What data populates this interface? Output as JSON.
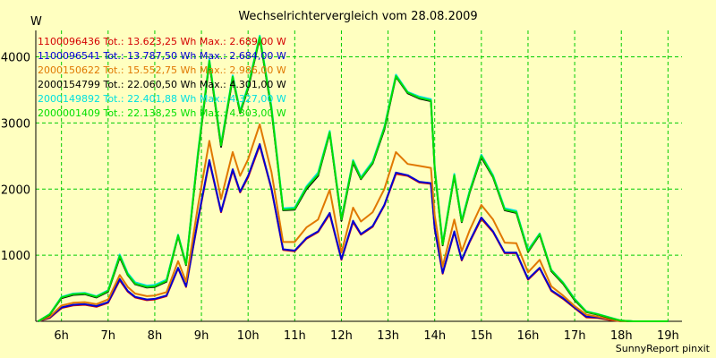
{
  "chart_data": {
    "type": "line",
    "title": "Wechselrichtervergleich vom 28.08.2009",
    "ylabel": "W",
    "ylim": [
      0,
      4400
    ],
    "xlim": [
      5.45,
      19.3
    ],
    "y_ticks": [
      1000,
      2000,
      3000,
      4000
    ],
    "x_ticks": [
      "6h",
      "7h",
      "8h",
      "9h",
      "10h",
      "11h",
      "12h",
      "13h",
      "14h",
      "15h",
      "16h",
      "17h",
      "18h",
      "19h"
    ],
    "grid": true,
    "legend_position": "top-left",
    "footer": "SunnyReport pinxit",
    "x": [
      5.5,
      5.75,
      6.0,
      6.25,
      6.5,
      6.75,
      7.0,
      7.25,
      7.42,
      7.58,
      7.83,
      8.0,
      8.25,
      8.5,
      8.67,
      8.92,
      9.17,
      9.42,
      9.67,
      9.83,
      10.0,
      10.25,
      10.5,
      10.75,
      11.0,
      11.25,
      11.5,
      11.75,
      12.0,
      12.25,
      12.42,
      12.67,
      12.92,
      13.17,
      13.42,
      13.67,
      13.92,
      14.0,
      14.17,
      14.42,
      14.58,
      14.75,
      15.0,
      15.25,
      15.5,
      15.75,
      16.0,
      16.25,
      16.5,
      16.75,
      17.0,
      17.25,
      17.5,
      17.75,
      18.0,
      18.25,
      18.5,
      18.75,
      19.0
    ],
    "series": [
      {
        "name": "1100096436",
        "legend": "1100096436 Tot.: 13.623,25 Wh Max.: 2.689,00 W",
        "color": "#d40000",
        "values": [
          0,
          50,
          200,
          240,
          250,
          220,
          280,
          620,
          450,
          360,
          320,
          330,
          380,
          800,
          520,
          1500,
          2420,
          1650,
          2280,
          1950,
          2180,
          2660,
          2000,
          1080,
          1060,
          1250,
          1350,
          1620,
          930,
          1500,
          1310,
          1430,
          1750,
          2230,
          2200,
          2100,
          2080,
          1400,
          720,
          1350,
          920,
          1200,
          1550,
          1350,
          1030,
          1030,
          630,
          800,
          460,
          340,
          200,
          60,
          50,
          20,
          0,
          0,
          0,
          0,
          0
        ]
      },
      {
        "name": "1100096541",
        "legend": "1100096541 Tot.: 13.787,50 Wh Max.: 2.684,00 W",
        "color": "#0000d4",
        "values": [
          0,
          60,
          210,
          250,
          260,
          230,
          290,
          640,
          460,
          370,
          330,
          340,
          390,
          810,
          530,
          1520,
          2440,
          1660,
          2300,
          1960,
          2200,
          2680,
          2010,
          1090,
          1070,
          1260,
          1360,
          1640,
          940,
          1520,
          1320,
          1440,
          1760,
          2250,
          2210,
          2110,
          2090,
          1410,
          730,
          1360,
          930,
          1210,
          1570,
          1360,
          1040,
          1040,
          640,
          810,
          470,
          350,
          210,
          70,
          60,
          30,
          0,
          0,
          0,
          0,
          0
        ]
      },
      {
        "name": "2000150622",
        "legend": "2000150622 Tot.: 15.552,75 Wh Max.: 2.986,00 W",
        "color": "#e07800",
        "values": [
          0,
          70,
          240,
          280,
          290,
          260,
          330,
          700,
          520,
          420,
          380,
          390,
          440,
          910,
          600,
          1720,
          2730,
          1850,
          2560,
          2200,
          2450,
          2980,
          2260,
          1200,
          1200,
          1420,
          1540,
          1990,
          1040,
          1720,
          1510,
          1650,
          2000,
          2560,
          2380,
          2350,
          2320,
          1600,
          830,
          1540,
          1060,
          1380,
          1760,
          1540,
          1190,
          1180,
          740,
          930,
          530,
          390,
          230,
          100,
          70,
          30,
          0,
          0,
          0,
          0,
          0
        ]
      },
      {
        "name": "2000154799",
        "legend": "2000154799 Tot.: 22.060,50 Wh Max.: 4.301,00 W",
        "color": "#000000",
        "values": [
          0,
          100,
          350,
          400,
          410,
          360,
          450,
          970,
          700,
          560,
          510,
          520,
          600,
          1290,
          850,
          2480,
          3920,
          2640,
          3680,
          3150,
          3520,
          4290,
          3200,
          1680,
          1690,
          2000,
          2200,
          2850,
          1520,
          2400,
          2150,
          2390,
          2900,
          3700,
          3450,
          3370,
          3330,
          2300,
          1150,
          2200,
          1500,
          1950,
          2480,
          2180,
          1680,
          1640,
          1050,
          1310,
          760,
          570,
          320,
          140,
          100,
          50,
          10,
          0,
          0,
          0,
          0
        ]
      },
      {
        "name": "2000149892",
        "legend": "2000149892 Tot.: 22.401,88 Wh Max.: 4.327,00 W",
        "color": "#00e0e0",
        "values": [
          0,
          110,
          370,
          420,
          430,
          380,
          470,
          1010,
          730,
          590,
          540,
          550,
          630,
          1310,
          870,
          2520,
          3960,
          2680,
          3720,
          3180,
          3560,
          4320,
          3250,
          1710,
          1720,
          2040,
          2250,
          2880,
          1560,
          2440,
          2180,
          2420,
          2940,
          3730,
          3470,
          3400,
          3360,
          2340,
          1180,
          2230,
          1530,
          1980,
          2520,
          2210,
          1710,
          1670,
          1080,
          1330,
          780,
          590,
          340,
          150,
          110,
          60,
          10,
          0,
          0,
          0,
          0
        ]
      },
      {
        "name": "2000001409",
        "legend": "2000001409 Tot.: 22.138,25 Wh Max.: 4.303,00 W",
        "color": "#00e000",
        "values": [
          0,
          105,
          360,
          410,
          420,
          370,
          460,
          990,
          710,
          570,
          520,
          530,
          610,
          1300,
          860,
          2500,
          3940,
          2660,
          3700,
          3160,
          3540,
          4300,
          3220,
          1690,
          1700,
          2020,
          2220,
          2860,
          1540,
          2420,
          2160,
          2400,
          2920,
          3710,
          3460,
          3380,
          3340,
          2320,
          1160,
          2210,
          1510,
          1960,
          2500,
          2190,
          1690,
          1650,
          1060,
          1320,
          770,
          580,
          330,
          145,
          105,
          55,
          10,
          0,
          0,
          0,
          0
        ]
      }
    ]
  }
}
